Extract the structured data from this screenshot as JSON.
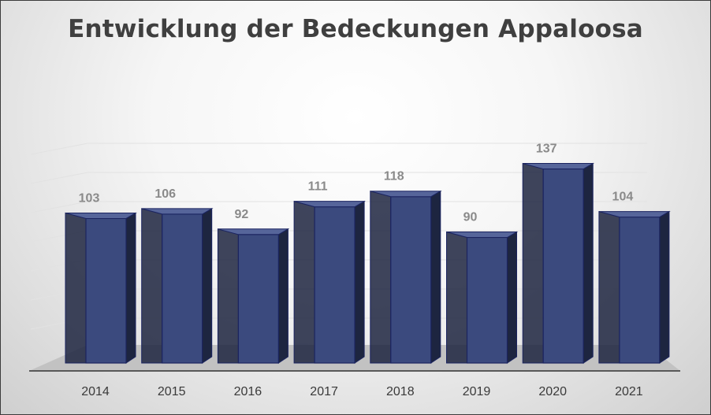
{
  "chart_data": {
    "type": "bar",
    "title": "Entwicklung der Bedeckungen Appaloosa",
    "categories": [
      "2014",
      "2015",
      "2016",
      "2017",
      "2018",
      "2019",
      "2020",
      "2021"
    ],
    "values": [
      103,
      106,
      92,
      111,
      118,
      90,
      137,
      104
    ],
    "xlabel": "",
    "ylabel": "",
    "ylim": [
      0,
      150
    ],
    "grid": true,
    "legend": "none",
    "colors": {
      "bar_front": "#3b4a7e",
      "bar_side": "#1d2540",
      "bar_top": "#56659a",
      "bar_edge": "#1b2460",
      "floor": "#c2c2c2",
      "axis": "#595959",
      "gridline": "#e2e2e2"
    }
  }
}
